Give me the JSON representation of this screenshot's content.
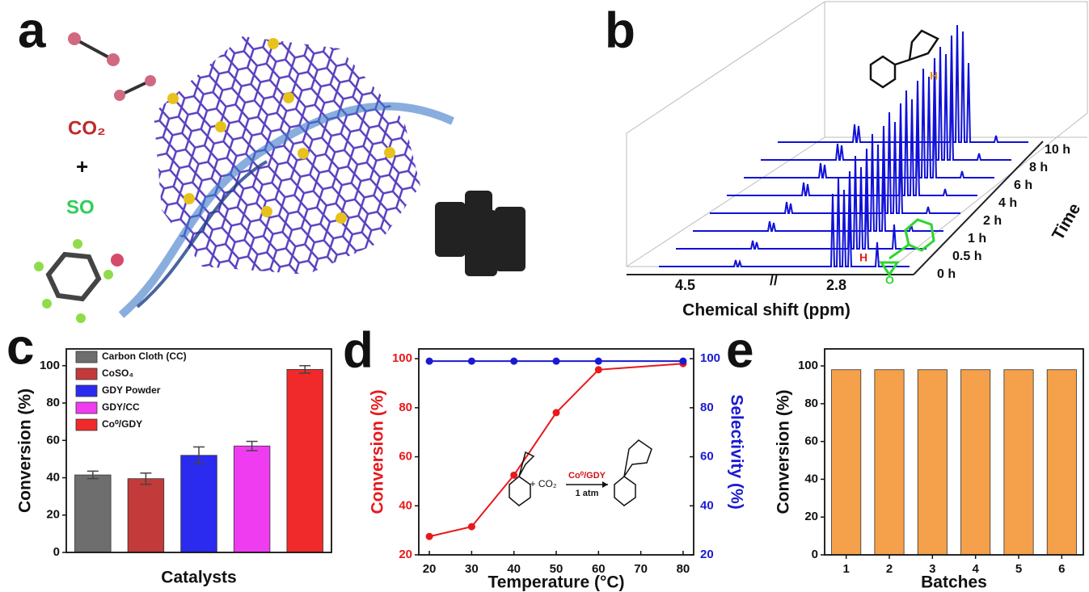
{
  "panel_labels": [
    "a",
    "b",
    "c",
    "d",
    "e"
  ],
  "panel_a": {
    "texts": [
      "CO₂",
      "+",
      "SO"
    ]
  },
  "panel_b": {
    "xlabel": "Chemical shift (ppm)",
    "xtick_labels": [
      "4.5",
      "//",
      "2.8"
    ],
    "times": [
      "10 h",
      "8 h",
      "6 h",
      "4 h",
      "2 h",
      "1 h",
      "0.5 h",
      "0 h"
    ],
    "time_label": "Time",
    "annotations": [
      "H",
      "H",
      "O"
    ]
  },
  "chart_data": [
    {
      "type": "bar",
      "xlabel": "Catalysts",
      "ylabel": "Conversion (%)",
      "categories": [
        "Carbon Cloth (CC)",
        "CoSO₄",
        "GDY Powder",
        "GDY/CC",
        "Co⁰/GDY"
      ],
      "values": [
        41.5,
        39.5,
        52,
        57,
        98
      ],
      "errors": [
        2,
        3,
        4.5,
        2.5,
        2
      ],
      "colors": [
        "#6e6e6e",
        "#c23a3a",
        "#2b2bf0",
        "#f03cf0",
        "#f02a2a"
      ],
      "ylim": [
        0,
        109
      ],
      "yticks": [
        0,
        20,
        40,
        60,
        80,
        100
      ],
      "legend": "upper left"
    },
    {
      "type": "line",
      "xlabel": "Temperature (°C)",
      "ylabel": "Conversion (%)",
      "y2label": "Selectivity (%)",
      "x": [
        20,
        30,
        40,
        50,
        60,
        80
      ],
      "xlim": [
        17.5,
        82.5
      ],
      "xticks": [
        20,
        30,
        40,
        50,
        60,
        70,
        80
      ],
      "ylim": [
        20,
        104
      ],
      "yticks": [
        20,
        40,
        60,
        80,
        100
      ],
      "y2lim": [
        20,
        104
      ],
      "y2ticks": [
        20,
        40,
        60,
        80,
        100
      ],
      "series": [
        {
          "color": "#e8191c",
          "values": [
            27.5,
            31.5,
            52.5,
            78,
            95.5,
            98
          ]
        },
        {
          "color": "#1a1ad0",
          "values": [
            99,
            99,
            99,
            99,
            99,
            99
          ],
          "axis": "y2"
        }
      ],
      "annotations": [
        "+ CO₂",
        "Co⁰/GDY",
        "1 atm"
      ]
    },
    {
      "type": "bar",
      "xlabel": "Batches",
      "ylabel": "Conversion (%)",
      "categories": [
        "1",
        "2",
        "3",
        "4",
        "5",
        "6"
      ],
      "values": [
        98,
        98,
        98,
        98,
        98,
        98
      ],
      "color": "#f5a04a",
      "ylim": [
        0,
        109
      ],
      "yticks": [
        0,
        20,
        40,
        60,
        80,
        100
      ]
    }
  ]
}
